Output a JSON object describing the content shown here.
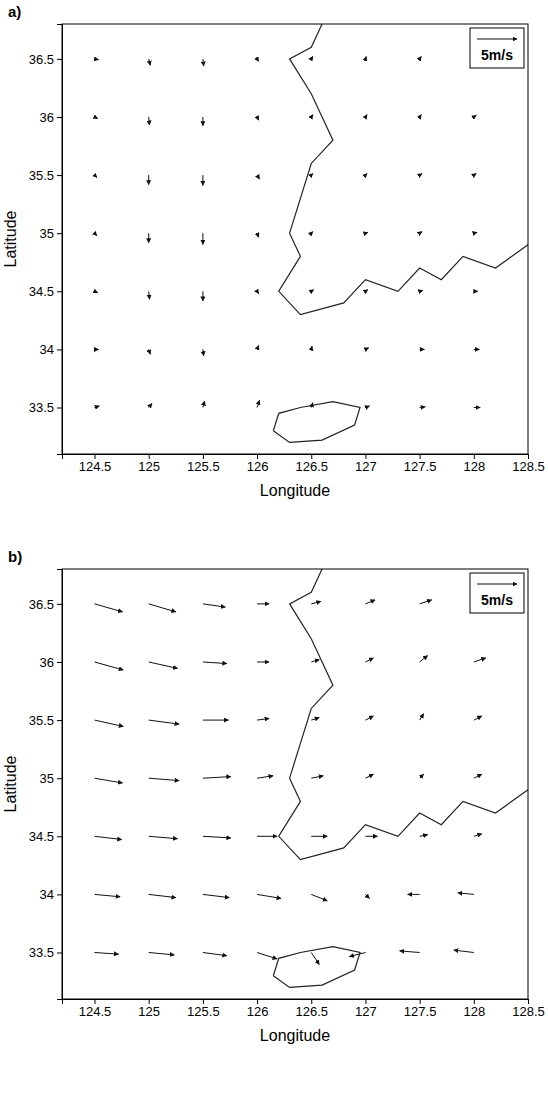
{
  "chart_data": [
    {
      "type": "quiver",
      "title": "a)",
      "xlabel": "Longitude",
      "ylabel": "Latitude",
      "key": {
        "value": 5,
        "label": "5m/s"
      },
      "xlim": [
        124.2,
        128.5
      ],
      "xticks": [
        124.5,
        125,
        125.5,
        126,
        126.5,
        127,
        127.5,
        128,
        128.5
      ],
      "ylim": [
        33.1,
        36.8
      ],
      "yticks": [
        33.5,
        34,
        34.5,
        35,
        35.5,
        36,
        36.5
      ],
      "x": [
        124.5,
        125,
        125.5,
        126,
        126.5,
        127,
        127.5,
        128,
        124.5,
        125,
        125.5,
        126,
        126.5,
        127,
        127.5,
        128,
        124.5,
        125,
        125.5,
        126,
        126.5,
        127,
        127.5,
        128,
        124.5,
        125,
        125.5,
        126,
        126.5,
        127,
        127.5,
        128,
        124.5,
        125,
        125.5,
        126,
        126.5,
        127,
        127.5,
        128,
        124.5,
        125,
        125.5,
        126,
        126.5,
        127,
        127.5,
        128,
        124.5,
        125,
        125.5,
        126,
        126.5,
        127,
        127.5,
        128
      ],
      "y": [
        33.5,
        33.5,
        33.5,
        33.5,
        33.5,
        33.5,
        33.5,
        33.5,
        34,
        34,
        34,
        34,
        34,
        34,
        34,
        34,
        34.5,
        34.5,
        34.5,
        34.5,
        34.5,
        34.5,
        34.5,
        34.5,
        35,
        35,
        35,
        35,
        35,
        35,
        35,
        35,
        35.5,
        35.5,
        35.5,
        35.5,
        35.5,
        35.5,
        35.5,
        35.5,
        36,
        36,
        36,
        36,
        36,
        36,
        36,
        36,
        36.5,
        36.5,
        36.5,
        36.5,
        36.5,
        36.5,
        36.5,
        36.5
      ],
      "u": [
        0.6,
        0.4,
        0.2,
        0.3,
        0.2,
        0.5,
        0.7,
        0.8,
        0.5,
        0.2,
        0.1,
        0.2,
        0.1,
        0.4,
        0.6,
        0.7,
        0.4,
        0.1,
        0.0,
        0.2,
        0.3,
        0.3,
        0.4,
        0.5,
        0.3,
        0.0,
        0.0,
        0.2,
        0.2,
        0.3,
        0.3,
        0.4,
        0.3,
        0.0,
        0.0,
        0.3,
        0.2,
        0.2,
        0.3,
        0.3,
        0.4,
        0.1,
        0.0,
        0.2,
        0.2,
        0.2,
        0.2,
        0.3,
        0.5,
        0.2,
        0.1,
        0.2,
        0.2,
        0.1,
        0.2,
        0.2
      ],
      "v": [
        0.2,
        0.5,
        0.8,
        0.9,
        0.6,
        0.2,
        0.1,
        0.0,
        0.0,
        -0.6,
        -0.8,
        0.5,
        0.4,
        0.2,
        0.0,
        0.0,
        -0.2,
        -1.0,
        -1.2,
        -0.3,
        0.2,
        0.2,
        0.1,
        0.0,
        -0.3,
        -1.2,
        -1.4,
        -0.5,
        0.2,
        0.1,
        0.2,
        0.1,
        -0.3,
        -1.2,
        -1.3,
        -0.5,
        0.2,
        0.2,
        0.2,
        0.2,
        -0.2,
        -1.0,
        -1.1,
        -0.4,
        0.3,
        0.3,
        0.3,
        0.2,
        -0.1,
        -0.8,
        -0.9,
        -0.3,
        0.3,
        0.3,
        0.3,
        0.2
      ],
      "coastline": {
        "x": [
          126.6,
          126.5,
          126.3,
          126.5,
          126.6,
          126.7,
          126.5,
          126.4,
          126.3,
          126.4,
          126.2,
          126.4,
          126.8,
          127.0,
          127.3,
          127.5,
          127.7,
          127.9,
          128.2,
          128.5,
          null,
          126.15,
          126.3,
          126.6,
          126.9,
          126.95,
          126.7,
          126.4,
          126.2,
          126.15
        ],
        "y": [
          36.8,
          36.6,
          36.5,
          36.2,
          36.0,
          35.8,
          35.6,
          35.3,
          35.0,
          34.8,
          34.5,
          34.3,
          34.4,
          34.6,
          34.5,
          34.7,
          34.6,
          34.8,
          34.7,
          34.9,
          null,
          33.3,
          33.2,
          33.22,
          33.35,
          33.5,
          33.55,
          33.5,
          33.45,
          33.3
        ]
      }
    },
    {
      "type": "quiver",
      "title": "b)",
      "xlabel": "Longitude",
      "ylabel": "Latitude",
      "key": {
        "value": 5,
        "label": "5m/s"
      },
      "xlim": [
        124.2,
        128.5
      ],
      "xticks": [
        124.5,
        125,
        125.5,
        126,
        126.5,
        127,
        127.5,
        128,
        128.5
      ],
      "ylim": [
        33.1,
        36.8
      ],
      "yticks": [
        33.5,
        34,
        34.5,
        35,
        35.5,
        36,
        36.5
      ],
      "x": [
        124.5,
        125,
        125.5,
        126,
        126.5,
        127,
        127.5,
        128,
        124.5,
        125,
        125.5,
        126,
        126.5,
        127,
        127.5,
        128,
        124.5,
        125,
        125.5,
        126,
        126.5,
        127,
        127.5,
        128,
        124.5,
        125,
        125.5,
        126,
        126.5,
        127,
        127.5,
        128,
        124.5,
        125,
        125.5,
        126,
        126.5,
        127,
        127.5,
        128,
        124.5,
        125,
        125.5,
        126,
        126.5,
        127,
        127.5,
        128,
        124.5,
        125,
        125.5,
        126,
        126.5,
        127,
        127.5,
        128
      ],
      "y": [
        33.5,
        33.5,
        33.5,
        33.5,
        33.5,
        33.5,
        33.5,
        33.5,
        34,
        34,
        34,
        34,
        34,
        34,
        34,
        34,
        34.5,
        34.5,
        34.5,
        34.5,
        34.5,
        34.5,
        34.5,
        34.5,
        35,
        35,
        35,
        35,
        35,
        35,
        35,
        35,
        35.5,
        35.5,
        35.5,
        35.5,
        35.5,
        35.5,
        35.5,
        35.5,
        36,
        36,
        36,
        36,
        36,
        36,
        36,
        36,
        36.5,
        36.5,
        36.5,
        36.5,
        36.5,
        36.5,
        36.5,
        36.5
      ],
      "u": [
        3.0,
        3.2,
        3.0,
        2.5,
        1.0,
        -2.0,
        -2.5,
        -2.5,
        3.2,
        3.4,
        3.3,
        3.0,
        2.0,
        0.5,
        -1.5,
        -2.0,
        3.4,
        3.6,
        3.5,
        2.5,
        2.0,
        1.5,
        1.0,
        1.0,
        3.5,
        3.8,
        3.5,
        2.0,
        1.5,
        1.0,
        0.5,
        1.0,
        3.6,
        3.8,
        3.2,
        1.5,
        1.0,
        1.0,
        0.5,
        1.0,
        3.6,
        3.6,
        3.0,
        1.5,
        1.0,
        1.0,
        1.0,
        1.5,
        3.5,
        3.4,
        2.8,
        1.5,
        1.2,
        1.2,
        1.5,
        1.5
      ],
      "v": [
        -0.2,
        -0.3,
        -0.4,
        -0.8,
        -1.5,
        -0.5,
        0.2,
        0.3,
        -0.3,
        -0.4,
        -0.4,
        -0.5,
        -0.8,
        -0.5,
        0.0,
        0.2,
        -0.4,
        -0.3,
        -0.2,
        0.0,
        0.0,
        0.0,
        0.2,
        0.3,
        -0.6,
        -0.3,
        0.2,
        0.3,
        0.3,
        0.5,
        0.5,
        0.5,
        -0.8,
        -0.5,
        0.0,
        0.2,
        0.3,
        0.5,
        0.8,
        0.5,
        -1.0,
        -0.8,
        -0.2,
        0.0,
        0.3,
        0.5,
        0.8,
        0.5,
        -1.0,
        -1.0,
        -0.4,
        0.0,
        0.3,
        0.5,
        0.5,
        0.5
      ],
      "coastline": {
        "x": [
          126.6,
          126.5,
          126.3,
          126.5,
          126.6,
          126.7,
          126.5,
          126.4,
          126.3,
          126.4,
          126.2,
          126.4,
          126.8,
          127.0,
          127.3,
          127.5,
          127.7,
          127.9,
          128.2,
          128.5,
          null,
          126.15,
          126.3,
          126.6,
          126.9,
          126.95,
          126.7,
          126.4,
          126.2,
          126.15
        ],
        "y": [
          36.8,
          36.6,
          36.5,
          36.2,
          36.0,
          35.8,
          35.6,
          35.3,
          35.0,
          34.8,
          34.5,
          34.3,
          34.4,
          34.6,
          34.5,
          34.7,
          34.6,
          34.8,
          34.7,
          34.9,
          null,
          33.3,
          33.2,
          33.22,
          33.35,
          33.5,
          33.55,
          33.5,
          33.45,
          33.3
        ]
      }
    }
  ]
}
